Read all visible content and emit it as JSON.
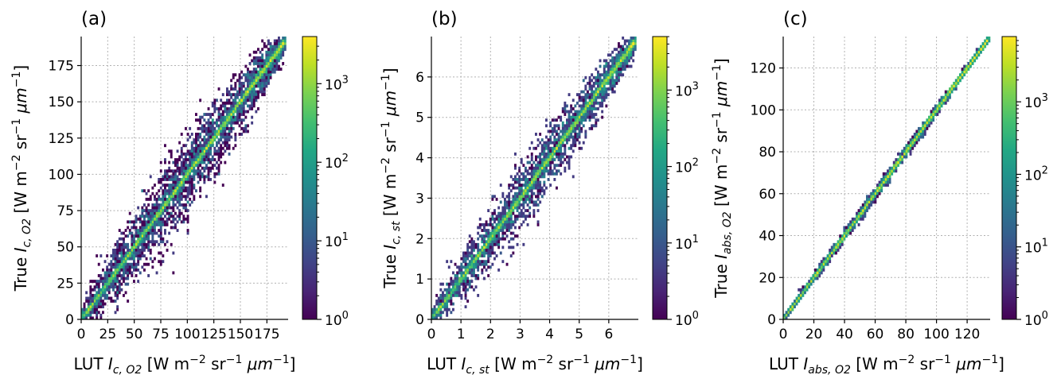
{
  "chart_data": [
    {
      "type": "heatmap",
      "panel_label": "(a)",
      "xlabel": {
        "pre": "LUT ",
        "sym": "I",
        "sub": "c, O2",
        "post": " [W m",
        "e1": "−2",
        "mid": " sr",
        "e2": "−1",
        "mu": " μm",
        "e3": "−1",
        "end": "]"
      },
      "ylabel": {
        "pre": "True ",
        "sym": "I",
        "sub": "c, O2",
        "post": " [W m",
        "e1": "−2",
        "mid": " sr",
        "e2": "−1",
        "mu": " μm",
        "e3": "−1",
        "end": "]"
      },
      "xlim": [
        0,
        195
      ],
      "ylim": [
        0,
        195
      ],
      "xticks": [
        0,
        25,
        50,
        75,
        100,
        125,
        150,
        175
      ],
      "xtick_labels": [
        "0",
        "25",
        "50",
        "75",
        "100",
        "125",
        "150",
        "175"
      ],
      "yticks": [
        0,
        25,
        50,
        75,
        100,
        125,
        150,
        175
      ],
      "ytick_labels": [
        "0",
        "25",
        "50",
        "75",
        "100",
        "125",
        "150",
        "175"
      ],
      "scatter_spread": 0.14,
      "band_width": 0.012,
      "data_max": 192,
      "colorbar": {
        "scale": "log",
        "min_exp": 0,
        "max_exp": 3.6,
        "tick_exps": [
          0,
          1,
          2,
          3
        ],
        "tick_labels": [
          "0",
          "1",
          "2",
          "3"
        ],
        "base": "10"
      },
      "grid": true
    },
    {
      "type": "heatmap",
      "panel_label": "(b)",
      "xlabel": {
        "pre": "LUT ",
        "sym": "I",
        "sub": "c, st",
        "post": " [W m",
        "e1": "−2",
        "mid": " sr",
        "e2": "−1",
        "mu": " μm",
        "e3": "−1",
        "end": "]"
      },
      "ylabel": {
        "pre": "True ",
        "sym": "I",
        "sub": "c, st",
        "post": " [W m",
        "e1": "−2",
        "mid": " sr",
        "e2": "−1",
        "mu": " μm",
        "e3": "−1",
        "end": "]"
      },
      "xlim": [
        0,
        7
      ],
      "ylim": [
        0,
        7
      ],
      "xticks": [
        0,
        1,
        2,
        3,
        4,
        5,
        6
      ],
      "xtick_labels": [
        "0",
        "1",
        "2",
        "3",
        "4",
        "5",
        "6"
      ],
      "yticks": [
        0,
        1,
        2,
        3,
        4,
        5,
        6
      ],
      "ytick_labels": [
        "0",
        "1",
        "2",
        "3",
        "4",
        "5",
        "6"
      ],
      "scatter_spread": 0.12,
      "band_width": 0.012,
      "data_max": 6.9,
      "colorbar": {
        "scale": "log",
        "min_exp": 0,
        "max_exp": 3.7,
        "tick_exps": [
          0,
          1,
          2,
          3
        ],
        "tick_labels": [
          "0",
          "1",
          "2",
          "3"
        ],
        "base": "10"
      },
      "grid": true
    },
    {
      "type": "heatmap",
      "panel_label": "(c)",
      "xlabel": {
        "pre": "LUT ",
        "sym": "I",
        "sub": "abs, O2",
        "post": " [W m",
        "e1": "−2",
        "mid": " sr",
        "e2": "−1",
        "mu": " μm",
        "e3": "−1",
        "end": "]"
      },
      "ylabel": {
        "pre": "True ",
        "sym": "I",
        "sub": "abs, O2",
        "post": " [W m",
        "e1": "−2",
        "mid": " sr",
        "e2": "−1",
        "mu": " μm",
        "e3": "−1",
        "end": "]"
      },
      "xlim": [
        0,
        135
      ],
      "ylim": [
        0,
        135
      ],
      "xticks": [
        0,
        20,
        40,
        60,
        80,
        100,
        120
      ],
      "xtick_labels": [
        "0",
        "20",
        "40",
        "60",
        "80",
        "100",
        "120"
      ],
      "yticks": [
        0,
        20,
        40,
        60,
        80,
        100,
        120
      ],
      "ytick_labels": [
        "0",
        "20",
        "40",
        "60",
        "80",
        "100",
        "120"
      ],
      "scatter_spread": 0.02,
      "band_width": 0.006,
      "data_max": 134,
      "colorbar": {
        "scale": "log",
        "min_exp": 0,
        "max_exp": 3.9,
        "tick_exps": [
          0,
          1,
          2,
          3
        ],
        "tick_labels": [
          "0",
          "1",
          "2",
          "3"
        ],
        "base": "10"
      },
      "grid": true
    }
  ]
}
